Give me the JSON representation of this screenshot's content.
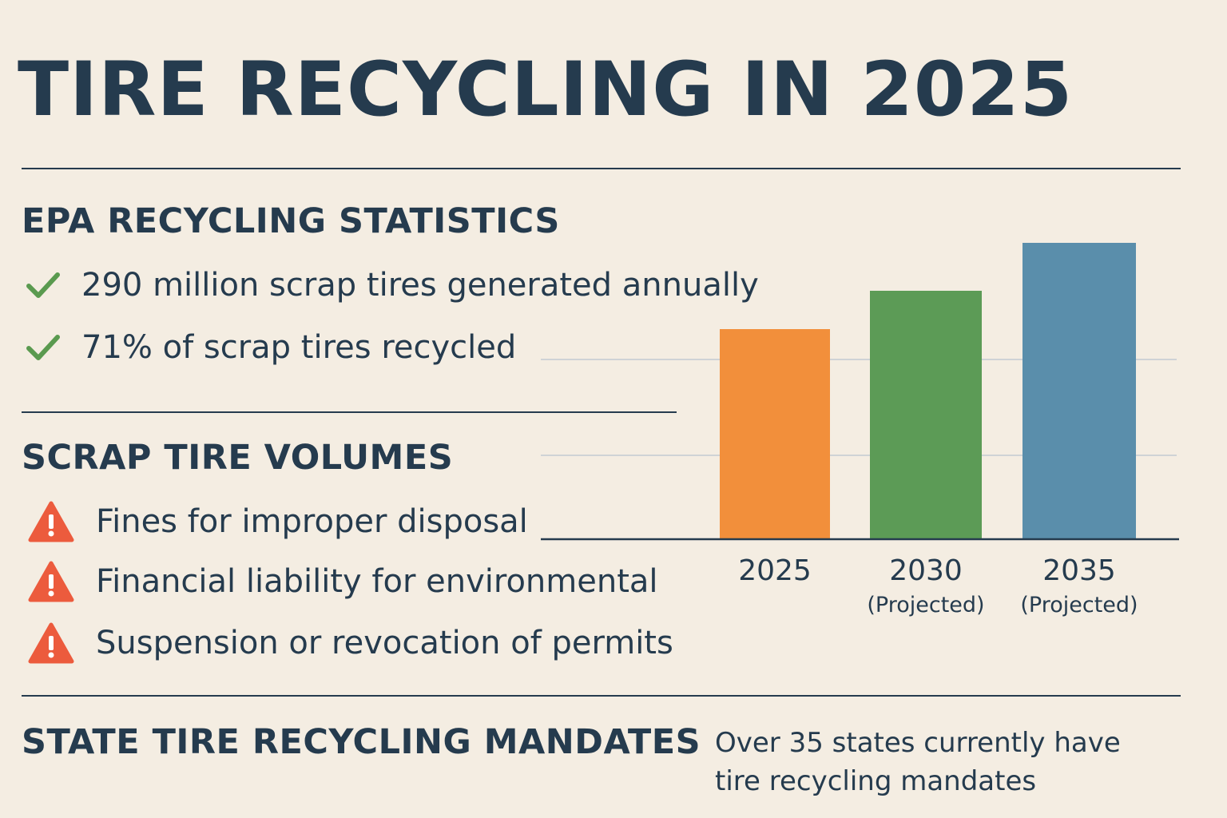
{
  "title": "TIRE RECYCLING IN 2025",
  "epa": {
    "heading": "EPA RECYCLING STATISTICS",
    "items": [
      {
        "icon": "check-icon",
        "text": "290 million scrap tires generated annually"
      },
      {
        "icon": "check-icon",
        "text": "71% of scrap tires recycled"
      }
    ]
  },
  "volumes": {
    "heading": "SCRAP TIRE VOLUMES",
    "items": [
      {
        "icon": "warning-icon",
        "text": "Fines for improper disposal"
      },
      {
        "icon": "warning-icon",
        "text": "Financial liability for environmental"
      },
      {
        "icon": "warning-icon",
        "text": "Suspension or revocation of permits"
      }
    ]
  },
  "mandates": {
    "heading": "STATE TIRE RECYCLING MANDATES",
    "note_line1": "Over 35 states currently have",
    "note_line2": "tire recycling mandates"
  },
  "colors": {
    "text": "#253b4e",
    "background": "#f4ede2",
    "check": "#5a9a4f",
    "warning": "#ec5b3d"
  },
  "chart_data": {
    "type": "bar",
    "categories": [
      "2025",
      "2030",
      "2035"
    ],
    "category_sublabels": [
      "",
      "(Projected)",
      "(Projected)"
    ],
    "values": [
      263,
      311,
      371
    ],
    "colors": [
      "#f28f3b",
      "#5c9b56",
      "#5a8eab"
    ],
    "title": "",
    "xlabel": "",
    "ylabel": "",
    "ylim": [
      0,
      440
    ],
    "gridlines": [
      105,
      225
    ],
    "grid": true,
    "axis_labels_shown": false
  }
}
